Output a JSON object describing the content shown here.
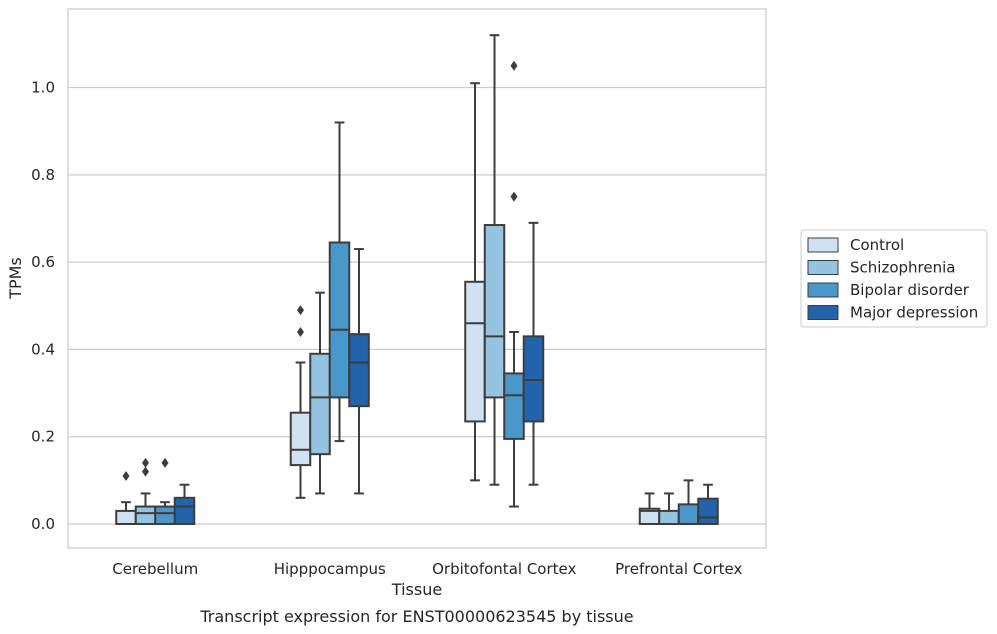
{
  "chart_data": {
    "type": "box",
    "caption": "Transcript expression for ENST00000623545 by tissue",
    "xlabel": "Tissue",
    "ylabel": "TPMs",
    "ylim": [
      -0.055,
      1.18
    ],
    "yticks": [
      0.0,
      0.2,
      0.4,
      0.6,
      0.8,
      1.0
    ],
    "ytick_labels": [
      "0.0",
      "0.2",
      "0.4",
      "0.6",
      "0.8",
      "1.0"
    ],
    "grid": "horizontal",
    "legend_position": "right",
    "categories": [
      "Cerebellum",
      "Hipppocampus",
      "Orbitofontal Cortex",
      "Prefrontal Cortex"
    ],
    "series": [
      {
        "name": "Control",
        "color": "#d0e1f2",
        "boxes": [
          {
            "whislo": 0.0,
            "q1": 0.0,
            "med": 0.0,
            "q3": 0.03,
            "whishi": 0.05,
            "fliers": [
              0.11
            ]
          },
          {
            "whislo": 0.06,
            "q1": 0.135,
            "med": 0.17,
            "q3": 0.255,
            "whishi": 0.37,
            "fliers": [
              0.44,
              0.49
            ]
          },
          {
            "whislo": 0.1,
            "q1": 0.235,
            "med": 0.46,
            "q3": 0.555,
            "whishi": 1.01,
            "fliers": []
          },
          {
            "whislo": 0.0,
            "q1": 0.0,
            "med": 0.03,
            "q3": 0.035,
            "whishi": 0.07,
            "fliers": []
          }
        ]
      },
      {
        "name": "Schizophrenia",
        "color": "#94c4df",
        "boxes": [
          {
            "whislo": 0.0,
            "q1": 0.0,
            "med": 0.025,
            "q3": 0.04,
            "whishi": 0.07,
            "fliers": [
              0.12,
              0.14
            ]
          },
          {
            "whislo": 0.07,
            "q1": 0.16,
            "med": 0.29,
            "q3": 0.39,
            "whishi": 0.53,
            "fliers": []
          },
          {
            "whislo": 0.09,
            "q1": 0.29,
            "med": 0.43,
            "q3": 0.685,
            "whishi": 1.12,
            "fliers": []
          },
          {
            "whislo": 0.0,
            "q1": 0.0,
            "med": 0.0,
            "q3": 0.03,
            "whishi": 0.07,
            "fliers": []
          }
        ]
      },
      {
        "name": "Bipolar disorder",
        "color": "#4a98c9",
        "boxes": [
          {
            "whislo": 0.0,
            "q1": 0.0,
            "med": 0.025,
            "q3": 0.04,
            "whishi": 0.05,
            "fliers": [
              0.14
            ]
          },
          {
            "whislo": 0.19,
            "q1": 0.29,
            "med": 0.445,
            "q3": 0.645,
            "whishi": 0.92,
            "fliers": []
          },
          {
            "whislo": 0.04,
            "q1": 0.195,
            "med": 0.295,
            "q3": 0.345,
            "whishi": 0.44,
            "fliers": [
              0.75,
              1.05
            ]
          },
          {
            "whislo": 0.0,
            "q1": 0.0,
            "med": 0.0,
            "q3": 0.045,
            "whishi": 0.1,
            "fliers": []
          }
        ]
      },
      {
        "name": "Major depression",
        "color": "#2164ab",
        "boxes": [
          {
            "whislo": 0.0,
            "q1": 0.0,
            "med": 0.04,
            "q3": 0.06,
            "whishi": 0.09,
            "fliers": []
          },
          {
            "whislo": 0.07,
            "q1": 0.27,
            "med": 0.37,
            "q3": 0.435,
            "whishi": 0.63,
            "fliers": []
          },
          {
            "whislo": 0.09,
            "q1": 0.235,
            "med": 0.33,
            "q3": 0.43,
            "whishi": 0.69,
            "fliers": []
          },
          {
            "whislo": 0.0,
            "q1": 0.0,
            "med": 0.015,
            "q3": 0.058,
            "whishi": 0.09,
            "fliers": []
          }
        ]
      }
    ]
  }
}
